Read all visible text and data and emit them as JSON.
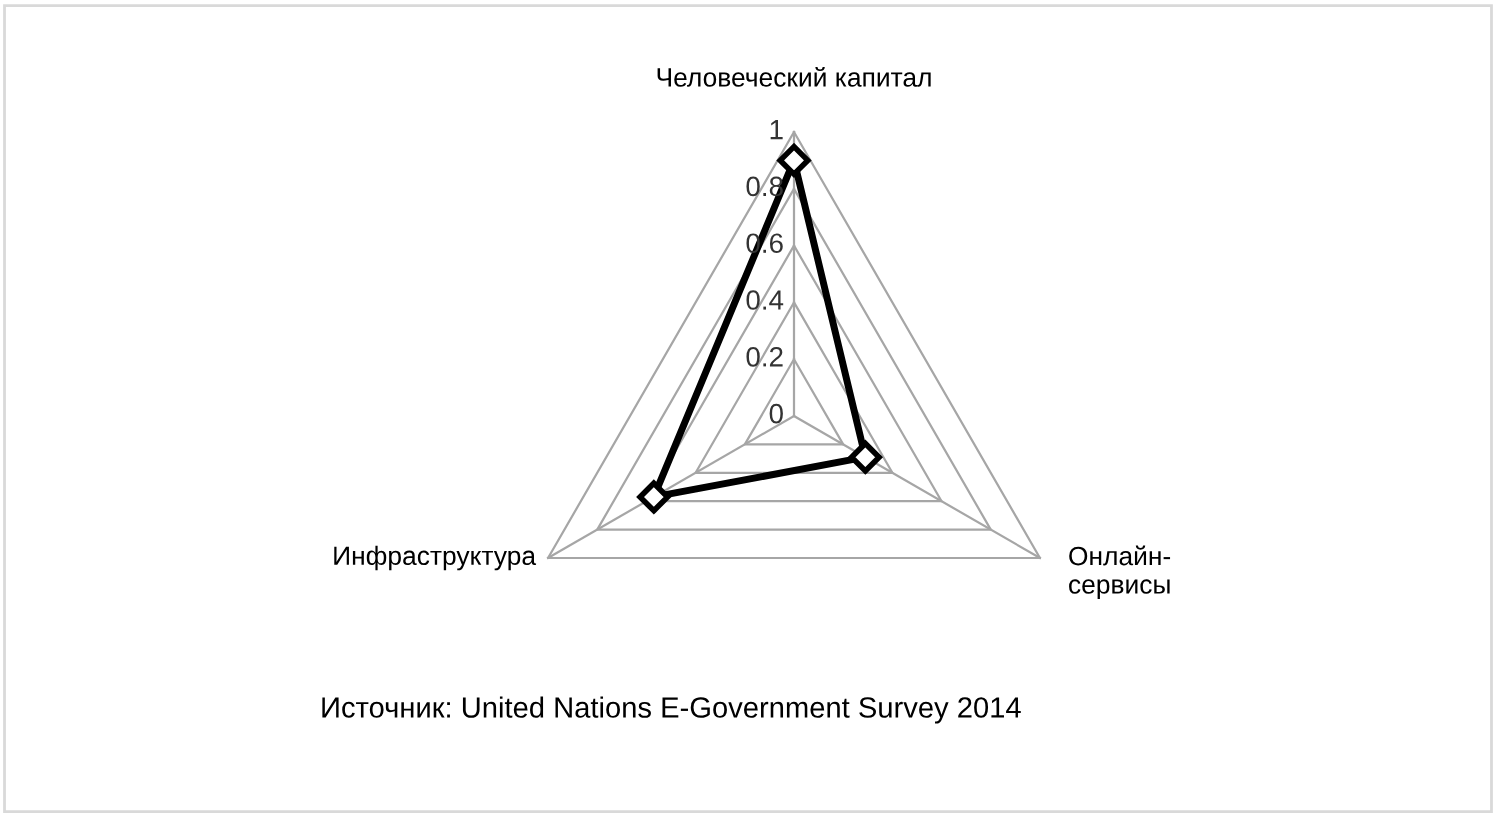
{
  "chart_data": {
    "type": "radar",
    "categories": [
      "Человеческий капитал",
      "Онлайн-сервисы",
      "Инфраструктура"
    ],
    "series": [
      {
        "color": "#000000",
        "values": [
          0.9,
          0.29,
          0.57
        ]
      }
    ],
    "ylim": [
      0,
      1
    ],
    "yticks": [
      0,
      0.2,
      0.4,
      0.6,
      0.8,
      1
    ],
    "marker": "diamond",
    "grid": true,
    "annotations": [
      "Источник: United Nations E-Government Survey 2014"
    ]
  }
}
